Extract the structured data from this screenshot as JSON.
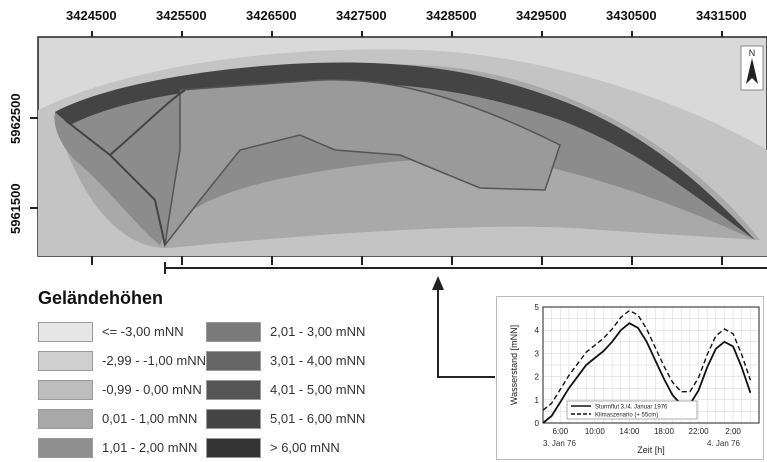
{
  "map": {
    "x_ticks": [
      "3424500",
      "3425500",
      "3426500",
      "3427500",
      "3428500",
      "3429500",
      "3430500",
      "3431500"
    ],
    "y_ticks": [
      "5962500",
      "5961500"
    ],
    "north_arrow_label": "N"
  },
  "legend": {
    "title": "Geländehöhen",
    "items": [
      {
        "label": "<= -3,00 mNN",
        "color": "#e6e6e6"
      },
      {
        "label": "-2,99 - -1,00 mNN",
        "color": "#cfcfcf"
      },
      {
        "label": "-0,99 - 0,00 mNN",
        "color": "#bdbdbd"
      },
      {
        "label": "0,01 - 1,00 mNN",
        "color": "#a8a8a8"
      },
      {
        "label": "1,01 - 2,00 mNN",
        "color": "#8e8e8e"
      },
      {
        "label": "2,01 - 3,00 mNN",
        "color": "#7a7a7a"
      },
      {
        "label": "3,01 - 4,00 mNN",
        "color": "#666666"
      },
      {
        "label": "4,01 - 5,00 mNN",
        "color": "#555555"
      },
      {
        "label": "5,01 - 6,00 mNN",
        "color": "#444444"
      },
      {
        "label": "> 6,00 mNN",
        "color": "#333333"
      }
    ]
  },
  "chart_data": {
    "type": "line",
    "ylabel": "Wasserstand [mNN]",
    "xlabel": "Zeit [h]",
    "ylim": [
      0,
      5
    ],
    "y_ticks": [
      "0",
      "1",
      "2",
      "3",
      "4",
      "5"
    ],
    "x_ticks": [
      "6:00",
      "10:00",
      "14:00",
      "18:00",
      "22:00",
      "2:00"
    ],
    "date_labels": [
      "3. Jan 76",
      "4. Jan 76"
    ],
    "x": [
      4,
      5,
      6,
      7,
      8,
      9,
      10,
      11,
      12,
      13,
      14,
      15,
      16,
      17,
      18,
      19,
      20,
      21,
      22,
      23,
      24,
      25,
      26,
      27,
      28
    ],
    "series": [
      {
        "name": "Sturmflut 3./4. Januar 1976",
        "style": "solid",
        "values": [
          0.0,
          0.3,
          0.9,
          1.5,
          2.0,
          2.5,
          2.8,
          3.1,
          3.5,
          4.0,
          4.3,
          4.1,
          3.5,
          2.7,
          1.9,
          1.2,
          0.8,
          0.8,
          1.4,
          2.4,
          3.2,
          3.5,
          3.3,
          2.4,
          1.3
        ]
      },
      {
        "name": "Klimaszenario (+ 55cm)",
        "style": "dashed",
        "values": [
          0.55,
          0.85,
          1.45,
          2.05,
          2.55,
          3.05,
          3.35,
          3.65,
          4.05,
          4.55,
          4.85,
          4.65,
          4.05,
          3.25,
          2.45,
          1.75,
          1.35,
          1.35,
          1.95,
          2.95,
          3.75,
          4.05,
          3.85,
          2.95,
          1.85
        ]
      }
    ]
  }
}
